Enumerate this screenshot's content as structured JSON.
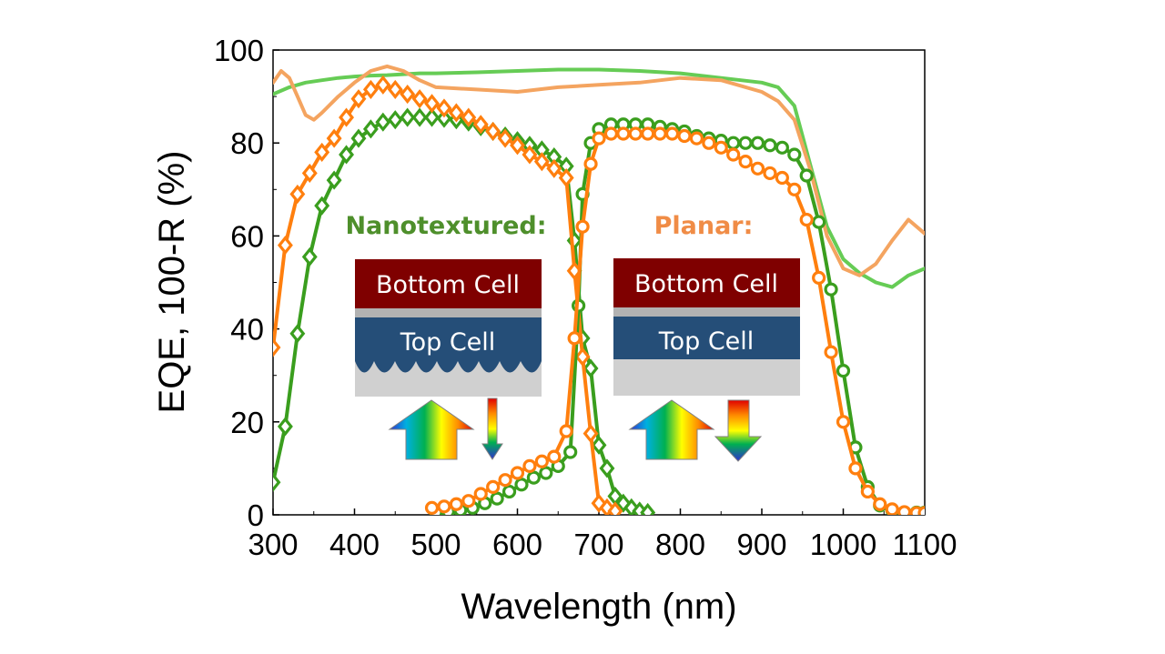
{
  "chart_data": {
    "type": "line",
    "title": "",
    "xlabel": "Wavelength (nm)",
    "ylabel": "EQE, 100-R (%)",
    "xlim": [
      300,
      1100
    ],
    "ylim": [
      0,
      100
    ],
    "xticks": [
      300,
      400,
      500,
      600,
      700,
      800,
      900,
      1000,
      1100
    ],
    "yticks": [
      0,
      20,
      40,
      60,
      80,
      100
    ],
    "grid": false,
    "legend": "none",
    "series": [
      {
        "group": "nanotextured",
        "kind": "100-R",
        "color": "#66cc55",
        "marker": "none",
        "x": [
          300,
          320,
          340,
          360,
          380,
          400,
          420,
          440,
          460,
          480,
          500,
          550,
          600,
          650,
          700,
          750,
          800,
          850,
          900,
          920,
          940,
          960,
          980,
          1000,
          1020,
          1040,
          1060,
          1080,
          1100
        ],
        "y": [
          90.5,
          92,
          93,
          93.5,
          94,
          94.3,
          94.5,
          94.6,
          94.8,
          95,
          95,
          95.2,
          95.5,
          95.8,
          95.8,
          95.5,
          95,
          94,
          93,
          92,
          88,
          75,
          62,
          55,
          52,
          50,
          49,
          51.5,
          53
        ]
      },
      {
        "group": "planar",
        "kind": "100-R",
        "color": "#f4a460",
        "marker": "none",
        "x": [
          300,
          310,
          320,
          330,
          340,
          350,
          360,
          380,
          400,
          420,
          440,
          460,
          480,
          500,
          550,
          600,
          650,
          700,
          750,
          800,
          850,
          900,
          920,
          940,
          960,
          980,
          1000,
          1020,
          1040,
          1060,
          1080,
          1100
        ],
        "y": [
          93,
          95.5,
          94,
          90,
          86,
          85,
          86.5,
          90,
          93,
          95.5,
          96.5,
          95.5,
          93.5,
          92,
          91.5,
          91,
          92,
          92.5,
          93,
          94,
          93.5,
          91,
          89,
          85,
          74,
          60,
          53,
          51.5,
          54,
          59,
          63.5,
          60.5
        ]
      },
      {
        "group": "nanotextured",
        "kind": "EQE top cell",
        "color": "#3a9e1e",
        "marker": "diamond",
        "x": [
          300,
          315,
          330,
          345,
          360,
          375,
          390,
          405,
          420,
          435,
          450,
          465,
          480,
          495,
          510,
          525,
          540,
          555,
          570,
          585,
          600,
          615,
          630,
          645,
          660,
          670,
          680,
          690,
          700,
          710,
          720,
          730,
          740,
          750,
          760
        ],
        "y": [
          7,
          19,
          39,
          55.5,
          66.5,
          72,
          77.5,
          81,
          83,
          84.5,
          85,
          85.5,
          85.5,
          85.5,
          85.3,
          85,
          84.5,
          83.5,
          82.5,
          81.5,
          80.5,
          79.5,
          78.5,
          77,
          75,
          59,
          38,
          31.5,
          15,
          10,
          4,
          2.5,
          1.5,
          0.8,
          0.5
        ]
      },
      {
        "group": "planar",
        "kind": "EQE top cell",
        "color": "#ff7f0e",
        "marker": "diamond",
        "x": [
          300,
          315,
          330,
          345,
          360,
          375,
          390,
          405,
          420,
          435,
          450,
          465,
          480,
          495,
          510,
          525,
          540,
          555,
          570,
          585,
          600,
          615,
          630,
          645,
          660,
          670,
          680,
          690,
          700,
          710,
          720
        ],
        "y": [
          36,
          58,
          69,
          73.5,
          78,
          81,
          85.5,
          89.5,
          91.5,
          92.5,
          91.5,
          90.5,
          89.5,
          88.5,
          87.5,
          86.5,
          85.5,
          84,
          82.5,
          81,
          79.5,
          77.5,
          76,
          74.5,
          72.5,
          52.5,
          34,
          17.5,
          2.5,
          1.5,
          0.8
        ]
      },
      {
        "group": "nanotextured",
        "kind": "EQE bottom cell",
        "color": "#3a9e1e",
        "marker": "circle",
        "x": [
          500,
          515,
          530,
          545,
          560,
          575,
          590,
          605,
          620,
          635,
          650,
          665,
          675,
          680,
          690,
          700,
          715,
          730,
          745,
          760,
          775,
          790,
          805,
          820,
          835,
          850,
          865,
          880,
          895,
          910,
          925,
          940,
          955,
          970,
          985,
          1000,
          1015,
          1030,
          1045,
          1060,
          1075,
          1090,
          1100
        ],
        "y": [
          0.5,
          0.7,
          1,
          1.5,
          2.5,
          3.5,
          5,
          6.5,
          8,
          9,
          10.5,
          13.5,
          45,
          69,
          80,
          83,
          84,
          84,
          84,
          84,
          83.5,
          83,
          82.5,
          81.5,
          81,
          80.5,
          80,
          80,
          80,
          79.5,
          79,
          77.5,
          73,
          63,
          48.5,
          31,
          14.5,
          6,
          2,
          1,
          0.5,
          0.5,
          0.5
        ]
      },
      {
        "group": "planar",
        "kind": "EQE bottom cell",
        "color": "#ff7f0e",
        "marker": "circle",
        "x": [
          495,
          510,
          525,
          540,
          555,
          570,
          585,
          600,
          615,
          630,
          645,
          660,
          670,
          680,
          690,
          700,
          715,
          730,
          745,
          760,
          775,
          790,
          805,
          820,
          835,
          850,
          865,
          880,
          895,
          910,
          925,
          940,
          955,
          970,
          985,
          1000,
          1015,
          1030,
          1045,
          1060,
          1075,
          1090,
          1100
        ],
        "y": [
          1.5,
          1.8,
          2.3,
          3,
          4.5,
          6,
          7.5,
          9,
          10.5,
          11.5,
          12.5,
          18,
          38,
          62,
          75.5,
          81,
          82,
          82,
          82,
          82,
          82,
          82,
          81.5,
          81,
          80,
          79,
          77.5,
          76,
          74.5,
          73.5,
          72.5,
          70,
          63.5,
          51,
          35,
          20,
          10,
          5,
          2.3,
          1.2,
          0.6,
          0.4,
          0.4
        ]
      }
    ],
    "annotations": {
      "nanotextured": {
        "title": "Nanotextured:",
        "bottom_cell": "Bottom Cell",
        "top_cell": "Top Cell",
        "color": "#4e8f2b"
      },
      "planar": {
        "title": "Planar:",
        "bottom_cell": "Bottom Cell",
        "top_cell": "Top Cell",
        "color": "#f08c46"
      }
    },
    "colors": {
      "bottom_cell": "#7f0000",
      "top_cell": "#254e78",
      "interlayer": "#b2b2b2",
      "substrate": "#d0d0d0"
    }
  }
}
